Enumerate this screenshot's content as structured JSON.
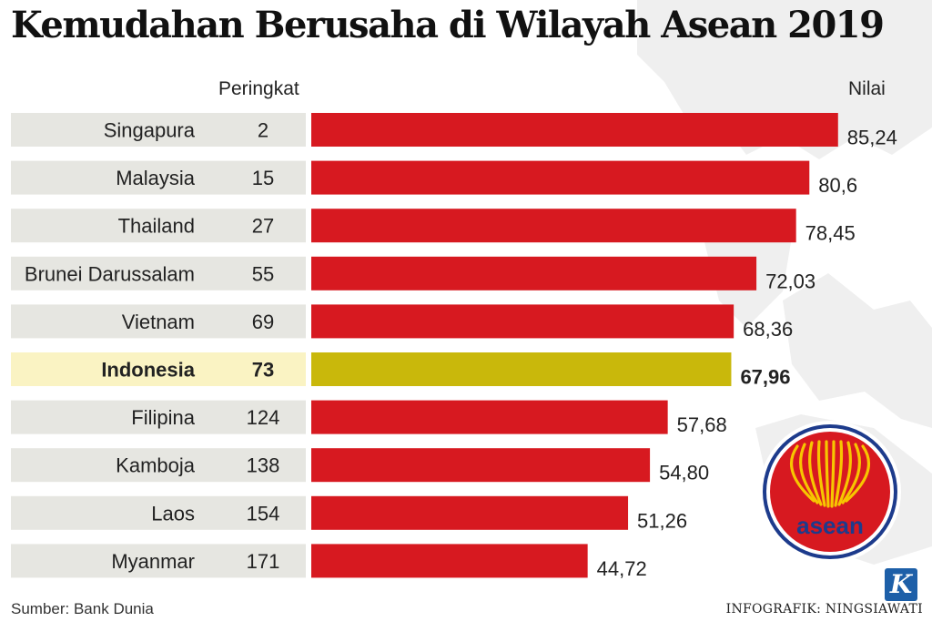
{
  "title": "Kemudahan Berusaha di Wilayah Asean 2019",
  "rank_header": "Peringkat",
  "value_header": "Nilai",
  "source": "Sumber: Bank Dunia",
  "credit": "INFOGRAFIK: NINGSIAWATI",
  "colors": {
    "bar": "#d71920",
    "bar_highlight": "#c9b80b",
    "row_bg": "#e6e6e1",
    "row_highlight": "#faf3c3",
    "text": "#222222",
    "logo_ring": "#1d3b8c",
    "logo_fill": "#d71920",
    "logo_gold": "#f7c600"
  },
  "logo": {
    "text": "asean"
  },
  "k_logo": "K",
  "chart_data": {
    "type": "bar",
    "orientation": "horizontal",
    "title": "Kemudahan Berusaha di Wilayah Asean 2019",
    "xlabel": "Nilai",
    "ylabel": "",
    "highlight": "Indonesia",
    "categories": [
      "Singapura",
      "Malaysia",
      "Thailand",
      "Brunei Darussalam",
      "Vietnam",
      "Indonesia",
      "Filipina",
      "Kamboja",
      "Laos",
      "Myanmar"
    ],
    "ranks": [
      "2",
      "15",
      "27",
      "55",
      "69",
      "73",
      "124",
      "138",
      "154",
      "171"
    ],
    "values": [
      85.24,
      80.6,
      78.45,
      72.03,
      68.36,
      67.96,
      57.68,
      54.8,
      51.26,
      44.72
    ],
    "value_labels": [
      "85,24",
      "80,6",
      "78,45",
      "72,03",
      "68,36",
      "67,96",
      "57,68",
      "54,80",
      "51,26",
      "44,72"
    ],
    "xlim": [
      0,
      100
    ]
  }
}
